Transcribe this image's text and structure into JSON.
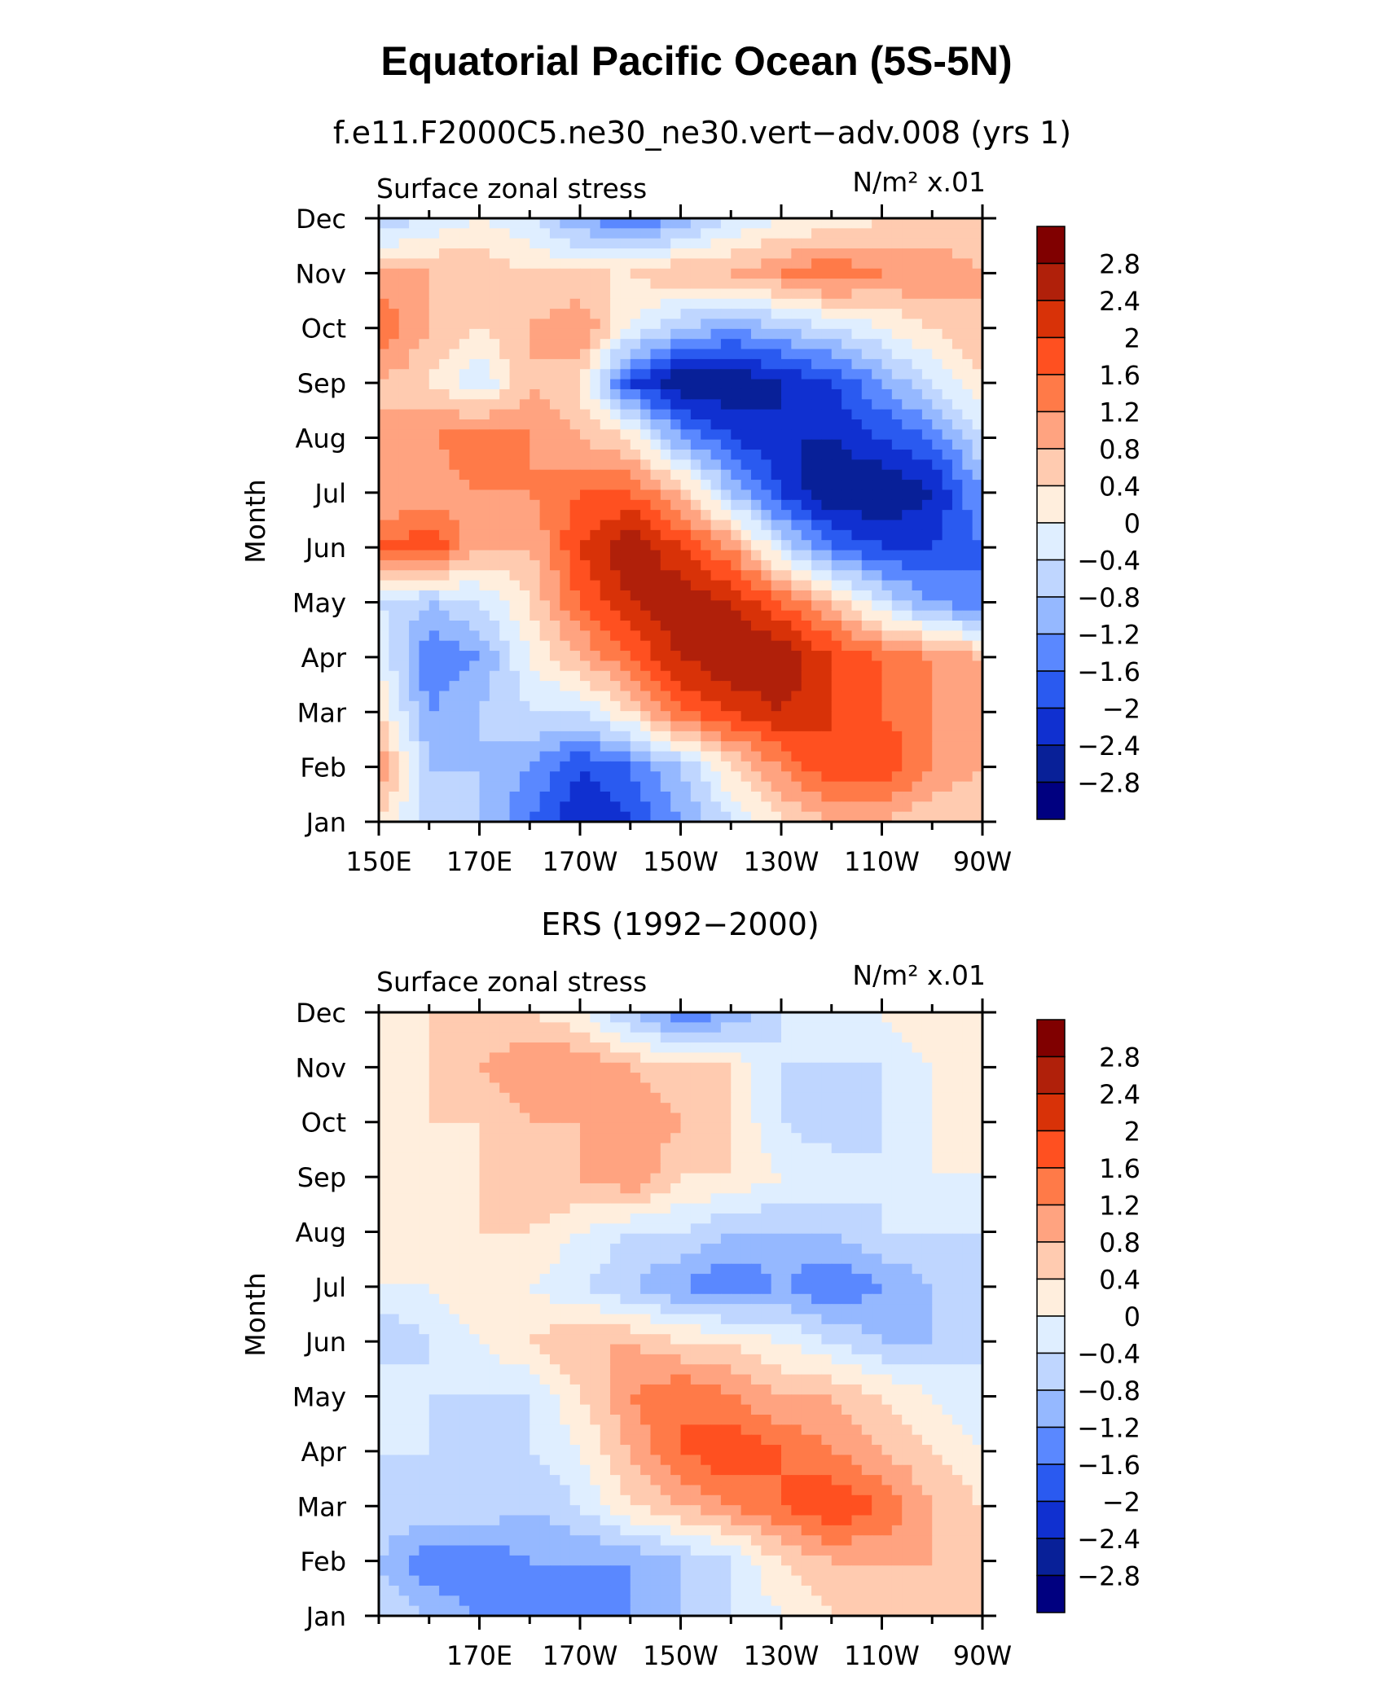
{
  "figure": {
    "title": "Equatorial Pacific Ocean (5S-5N)"
  },
  "colorbar": {
    "levels": [
      "2.8",
      "2.4",
      "2",
      "1.6",
      "1.2",
      "0.8",
      "0.4",
      "0",
      "−0.4",
      "−0.8",
      "−1.2",
      "−1.6",
      "−2",
      "−2.4",
      "−2.8"
    ],
    "colors": [
      "#800000",
      "#b0200a",
      "#d83208",
      "#ff5020",
      "#ff7a48",
      "#ffa380",
      "#ffcbb0",
      "#ffeedd",
      "#dfeeff",
      "#bfd6ff",
      "#95b8ff",
      "#5a88ff",
      "#2a5af0",
      "#1030d0",
      "#082098",
      "#000080"
    ]
  },
  "chart_data": [
    {
      "type": "heatmap",
      "panel_title": "f.e11.F2000C5.ne30_ne30.vert−adv.008 (yrs 1)",
      "left_label": "Surface zonal stress",
      "units": "N/m² x.01",
      "ylabel": "Month",
      "xlabel": "",
      "y_categories": [
        "Jan",
        "Feb",
        "Mar",
        "Apr",
        "May",
        "Jun",
        "Jul",
        "Aug",
        "Sep",
        "Oct",
        "Nov",
        "Dec"
      ],
      "x_ticks": [
        "150E",
        "170E",
        "170W",
        "150W",
        "130W",
        "110W",
        "90W"
      ],
      "x_tick_lon": [
        150,
        170,
        190,
        210,
        230,
        250,
        270
      ],
      "x_range": [
        150,
        270
      ],
      "longitudes": [
        150,
        160,
        170,
        180,
        190,
        200,
        210,
        220,
        230,
        240,
        250,
        260,
        270
      ],
      "values": [
        [
          0.4,
          -0.6,
          -0.8,
          -1.6,
          -2.4,
          -2.0,
          -1.2,
          -0.4,
          0.4,
          0.8,
          0.8,
          0.4,
          0.4
        ],
        [
          1.2,
          -0.8,
          -0.8,
          -1.2,
          -2.0,
          -1.6,
          -0.8,
          0.4,
          1.2,
          2.0,
          2.0,
          1.2,
          0.8
        ],
        [
          0.4,
          -1.2,
          -0.8,
          -0.4,
          -0.4,
          0.4,
          1.6,
          2.0,
          2.4,
          2.0,
          1.6,
          1.2,
          0.8
        ],
        [
          0.0,
          -1.6,
          -1.2,
          0.0,
          0.8,
          1.6,
          2.4,
          2.8,
          2.8,
          2.0,
          1.6,
          1.2,
          0.8
        ],
        [
          -0.4,
          -0.8,
          -0.4,
          0.4,
          1.6,
          2.4,
          2.8,
          2.4,
          1.6,
          0.8,
          -0.4,
          -1.2,
          -1.6
        ],
        [
          1.6,
          2.0,
          0.8,
          0.8,
          2.0,
          2.8,
          2.0,
          1.2,
          -0.4,
          -1.6,
          -2.0,
          -2.0,
          -1.6
        ],
        [
          0.8,
          0.8,
          1.2,
          1.2,
          1.6,
          1.6,
          0.8,
          -0.8,
          -2.0,
          -2.8,
          -2.8,
          -2.4,
          -1.2
        ],
        [
          0.8,
          1.2,
          1.6,
          1.2,
          0.8,
          0.4,
          -1.2,
          -2.0,
          -2.4,
          -2.4,
          -2.0,
          -1.6,
          -0.4
        ],
        [
          0.8,
          0.4,
          -0.4,
          0.8,
          0.4,
          -2.0,
          -2.8,
          -2.8,
          -2.4,
          -2.0,
          -1.2,
          -0.4,
          0.4
        ],
        [
          1.6,
          0.8,
          0.4,
          0.8,
          1.2,
          0.0,
          -0.8,
          -1.2,
          -0.8,
          -0.4,
          0.0,
          0.4,
          0.8
        ],
        [
          0.8,
          0.8,
          0.8,
          0.4,
          0.4,
          0.4,
          0.8,
          0.8,
          1.2,
          1.6,
          1.2,
          1.2,
          0.8
        ],
        [
          -0.8,
          -0.4,
          0.0,
          -0.4,
          -1.2,
          -1.6,
          -1.2,
          -0.4,
          0.0,
          0.0,
          0.4,
          0.4,
          0.4
        ]
      ]
    },
    {
      "type": "heatmap",
      "panel_title": "ERS (1992−2000)",
      "left_label": "Surface zonal stress",
      "units": "N/m² x.01",
      "ylabel": "Month",
      "xlabel": "",
      "y_categories": [
        "Jan",
        "Feb",
        "Mar",
        "Apr",
        "May",
        "Jun",
        "Jul",
        "Aug",
        "Sep",
        "Oct",
        "Nov",
        "Dec"
      ],
      "x_ticks": [
        "170E",
        "170W",
        "150W",
        "130W",
        "110W",
        "90W"
      ],
      "x_tick_lon": [
        170,
        190,
        210,
        230,
        250,
        270
      ],
      "x_range": [
        150,
        270
      ],
      "longitudes": [
        150,
        160,
        170,
        180,
        190,
        200,
        210,
        220,
        230,
        240,
        250,
        260,
        270
      ],
      "values": [
        [
          -0.4,
          -0.8,
          -1.2,
          -1.6,
          -1.6,
          -1.2,
          -0.8,
          -0.4,
          0.0,
          0.4,
          0.4,
          0.4,
          0.4
        ],
        [
          -0.8,
          -1.6,
          -1.6,
          -1.2,
          -1.2,
          -1.2,
          -0.8,
          -0.4,
          0.4,
          0.8,
          0.8,
          0.8,
          0.4
        ],
        [
          -0.4,
          -0.4,
          -0.4,
          -0.8,
          -0.4,
          0.4,
          0.8,
          1.2,
          1.6,
          2.0,
          1.6,
          0.8,
          0.4
        ],
        [
          -0.4,
          -0.4,
          -0.4,
          -0.4,
          0.0,
          0.8,
          1.6,
          2.0,
          1.6,
          1.2,
          0.8,
          0.4,
          0.0
        ],
        [
          0.0,
          -0.4,
          -0.4,
          -0.4,
          0.4,
          1.2,
          1.6,
          1.2,
          0.8,
          0.8,
          0.4,
          0.0,
          -0.4
        ],
        [
          -0.8,
          -0.4,
          0.0,
          0.4,
          0.8,
          0.8,
          0.4,
          0.4,
          0.0,
          -0.4,
          -0.8,
          -0.8,
          -0.4
        ],
        [
          0.0,
          0.0,
          0.4,
          0.0,
          -0.4,
          -0.8,
          -1.2,
          -1.6,
          -1.2,
          -1.6,
          -1.2,
          -0.8,
          -0.8
        ],
        [
          0.0,
          0.4,
          0.4,
          0.4,
          0.0,
          -0.4,
          -0.4,
          -0.8,
          -0.8,
          -0.8,
          -0.4,
          -0.4,
          -0.4
        ],
        [
          0.0,
          0.4,
          0.4,
          0.8,
          0.8,
          1.2,
          0.4,
          0.4,
          0.0,
          0.0,
          -0.4,
          0.0,
          0.0
        ],
        [
          0.0,
          0.4,
          0.4,
          0.8,
          0.8,
          1.2,
          0.8,
          0.4,
          -0.4,
          -0.8,
          -0.4,
          0.0,
          0.4
        ],
        [
          0.4,
          0.4,
          0.8,
          1.2,
          1.2,
          0.8,
          0.4,
          0.4,
          -0.4,
          -0.4,
          -0.4,
          0.0,
          0.4
        ],
        [
          0.4,
          0.4,
          0.4,
          0.4,
          0.0,
          -0.8,
          -1.6,
          -1.2,
          -0.4,
          0.0,
          0.0,
          0.4,
          0.4
        ]
      ]
    }
  ]
}
